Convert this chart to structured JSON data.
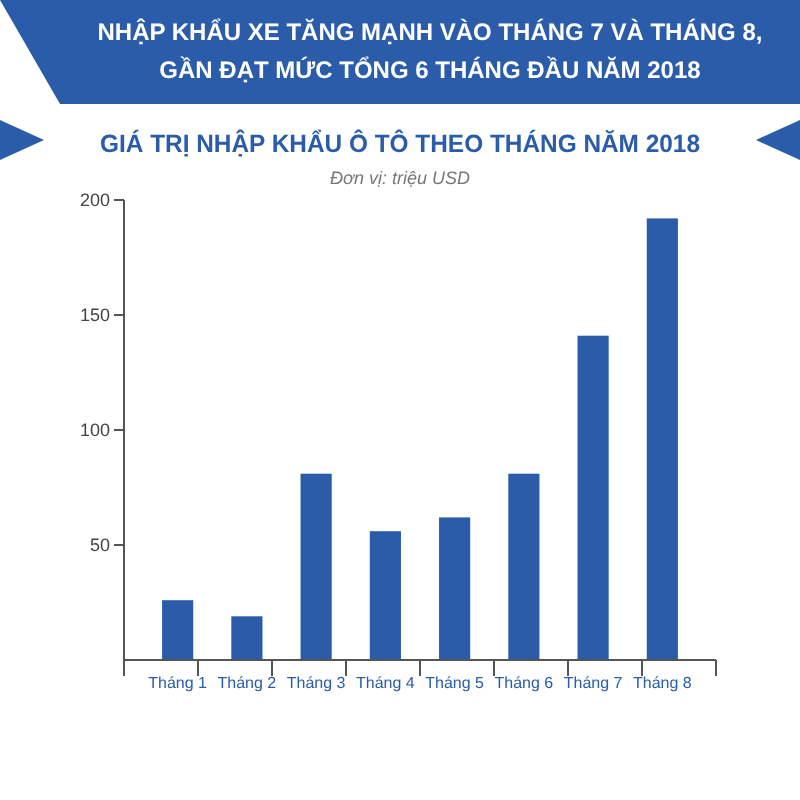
{
  "chart_data": {
    "type": "bar",
    "title": "NHẬP KHẨU XE TĂNG MẠNH VÀO THÁNG 7 VÀ THÁNG 8, GẦN ĐẠT MỨC TỔNG 6 THÁNG ĐẦU NĂM 2018",
    "subtitle": "GIÁ TRỊ NHẬP KHẨU Ô TÔ THEO THÁNG NĂM 2018",
    "annotations": [
      "Đơn vị: triệu USD"
    ],
    "categories": [
      "Tháng 1",
      "Tháng 2",
      "Tháng 3",
      "Tháng 4",
      "Tháng 5",
      "Tháng 6",
      "Tháng 7",
      "Tháng 8"
    ],
    "values": [
      26,
      19,
      81,
      56,
      62,
      81,
      141,
      192
    ],
    "color": "#2a5caa",
    "ylim": [
      0,
      200
    ],
    "yticks": [
      50,
      100,
      150,
      200
    ],
    "grid": false
  }
}
